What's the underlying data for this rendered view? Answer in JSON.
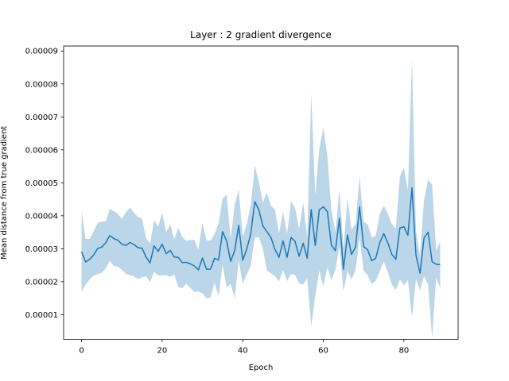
{
  "chart_data": {
    "type": "line",
    "title": "Layer : 2 gradient divergence",
    "xlabel": "Epoch",
    "ylabel": "Mean distance from true gradient",
    "xlim": [
      -4.45,
      93.45
    ],
    "ylim": [
      2.5e-06,
      9.15e-05
    ],
    "xticks": [
      0,
      20,
      40,
      60,
      80
    ],
    "yticks": [
      1e-05,
      2e-05,
      3e-05,
      4e-05,
      5e-05,
      6e-05,
      7e-05,
      8e-05,
      9e-05
    ],
    "ytick_labels": [
      "0.00001",
      "0.00002",
      "0.00003",
      "0.00004",
      "0.00005",
      "0.00006",
      "0.00007",
      "0.00008",
      "0.00009"
    ],
    "grid": false,
    "colors": {
      "line": "#1f77b4",
      "band": "#1f77b4"
    },
    "series": [
      {
        "x": [
          0,
          1,
          2,
          3,
          4,
          5,
          6,
          7,
          8,
          9,
          10,
          11,
          12,
          13,
          14,
          15,
          16,
          17,
          18,
          19,
          20,
          21,
          22,
          23,
          24,
          25,
          26,
          27,
          28,
          29,
          30,
          31,
          32,
          33,
          34,
          35,
          36,
          37,
          38,
          39,
          40,
          41,
          42,
          43,
          44,
          45,
          46,
          47,
          48,
          49,
          50,
          51,
          52,
          53,
          54,
          55,
          56,
          57,
          58,
          59,
          60,
          61,
          62,
          63,
          64,
          65,
          66,
          67,
          68,
          69,
          70,
          71,
          72,
          73,
          74,
          75,
          76,
          77,
          78,
          79,
          80,
          81,
          82,
          83,
          84,
          85,
          86,
          87,
          88,
          89
        ],
        "mean": [
          2.91e-05,
          2.6e-05,
          2.68e-05,
          2.81e-05,
          3.01e-05,
          3.05e-05,
          3.18e-05,
          3.4e-05,
          3.31e-05,
          3.26e-05,
          3.14e-05,
          3.1e-05,
          3.19e-05,
          3.13e-05,
          3.03e-05,
          3.02e-05,
          2.75e-05,
          2.57e-05,
          3.09e-05,
          2.92e-05,
          3.14e-05,
          2.85e-05,
          2.95e-05,
          2.75e-05,
          2.74e-05,
          2.58e-05,
          2.59e-05,
          2.54e-05,
          2.48e-05,
          2.36e-05,
          2.72e-05,
          2.38e-05,
          2.38e-05,
          2.71e-05,
          2.66e-05,
          3.52e-05,
          3.24e-05,
          2.62e-05,
          2.94e-05,
          3.71e-05,
          2.65e-05,
          2.99e-05,
          3.46e-05,
          4.43e-05,
          4.18e-05,
          3.69e-05,
          3.52e-05,
          3.34e-05,
          2.98e-05,
          2.74e-05,
          3.24e-05,
          2.74e-05,
          3.34e-05,
          3.22e-05,
          2.77e-05,
          3.17e-05,
          2.71e-05,
          4.19e-05,
          3.1e-05,
          4.18e-05,
          4.27e-05,
          4.13e-05,
          3.11e-05,
          2.94e-05,
          3.93e-05,
          2.38e-05,
          3.42e-05,
          2.83e-05,
          3.05e-05,
          4.27e-05,
          3.07e-05,
          2.97e-05,
          2.64e-05,
          2.71e-05,
          3.18e-05,
          3.46e-05,
          3.18e-05,
          2.83e-05,
          2.68e-05,
          3.63e-05,
          3.67e-05,
          3.41e-05,
          4.85e-05,
          2.8e-05,
          2.26e-05,
          3.33e-05,
          3.5e-05,
          2.61e-05,
          2.53e-05,
          2.52e-05
        ],
        "upper": [
          4.13e-05,
          3.3e-05,
          3.3e-05,
          3.53e-05,
          3.78e-05,
          3.83e-05,
          3.83e-05,
          4.21e-05,
          4.14e-05,
          4.06e-05,
          3.91e-05,
          4.1e-05,
          4.25e-05,
          4.1e-05,
          3.97e-05,
          3.91e-05,
          3.33e-05,
          3.16e-05,
          3.87e-05,
          3.66e-05,
          4.09e-05,
          3.49e-05,
          3.75e-05,
          3.28e-05,
          3.64e-05,
          3.36e-05,
          3.24e-05,
          3.27e-05,
          3.27e-05,
          2.97e-05,
          3.79e-05,
          3.26e-05,
          3.24e-05,
          3.45e-05,
          3.76e-05,
          4.52e-05,
          4.65e-05,
          3.3e-05,
          4.34e-05,
          4.8e-05,
          3.37e-05,
          3.76e-05,
          4.33e-05,
          5.52e-05,
          5.02e-05,
          4.4e-05,
          4.7e-05,
          4.3e-05,
          4.19e-05,
          3.47e-05,
          4.12e-05,
          3.46e-05,
          4.45e-05,
          4.23e-05,
          3.6e-05,
          4.42e-05,
          3.33e-05,
          7.72e-05,
          4.63e-05,
          6.02e-05,
          6.68e-05,
          5.82e-05,
          4.18e-05,
          3.51e-05,
          4.79e-05,
          3.04e-05,
          4.52e-05,
          3.58e-05,
          3.76e-05,
          5.19e-05,
          3.81e-05,
          3.74e-05,
          3.35e-05,
          3.39e-05,
          4.05e-05,
          4.31e-05,
          4.07e-05,
          3.75e-05,
          3.61e-05,
          5.19e-05,
          5.45e-05,
          4.77e-05,
          8.79e-05,
          3.53e-05,
          2.79e-05,
          4.49e-05,
          5.09e-05,
          4.95e-05,
          2.94e-05,
          3.22e-05
        ],
        "lower": [
          1.69e-05,
          1.91e-05,
          2.07e-05,
          2.18e-05,
          2.24e-05,
          2.27e-05,
          2.41e-05,
          2.64e-05,
          2.48e-05,
          2.46e-05,
          2.36e-05,
          2.24e-05,
          2.2e-05,
          2.16e-05,
          2.08e-05,
          2.13e-05,
          2.17e-05,
          1.98e-05,
          2.31e-05,
          2.19e-05,
          2.19e-05,
          2.2e-05,
          2.15e-05,
          2.22e-05,
          1.84e-05,
          1.8e-05,
          1.94e-05,
          1.81e-05,
          1.69e-05,
          1.71e-05,
          1.65e-05,
          1.5e-05,
          1.52e-05,
          1.97e-05,
          1.56e-05,
          2.52e-05,
          1.83e-05,
          1.93e-05,
          1.51e-05,
          2.65e-05,
          1.93e-05,
          2.22e-05,
          2.49e-05,
          3.34e-05,
          3.35e-05,
          2.99e-05,
          2.34e-05,
          2.25e-05,
          2.17e-05,
          2.01e-05,
          2.36e-05,
          2.02e-05,
          2.23e-05,
          2.21e-05,
          1.94e-05,
          1.92e-05,
          2.1e-05,
          6.5e-06,
          1.57e-05,
          2.34e-05,
          1.86e-05,
          2.44e-05,
          2.05e-05,
          2.37e-05,
          3.08e-05,
          1.72e-05,
          2.32e-05,
          2.08e-05,
          2.34e-05,
          3.35e-05,
          2.33e-05,
          2.2e-05,
          1.93e-05,
          2.03e-05,
          2.31e-05,
          2.61e-05,
          2.29e-05,
          1.92e-05,
          1.75e-05,
          2.07e-05,
          1.89e-05,
          2.05e-05,
          9.1e-06,
          2.07e-05,
          1.73e-05,
          2.17e-05,
          1.91e-05,
          2.7e-06,
          2.12e-05,
          1.82e-05
        ]
      }
    ]
  }
}
